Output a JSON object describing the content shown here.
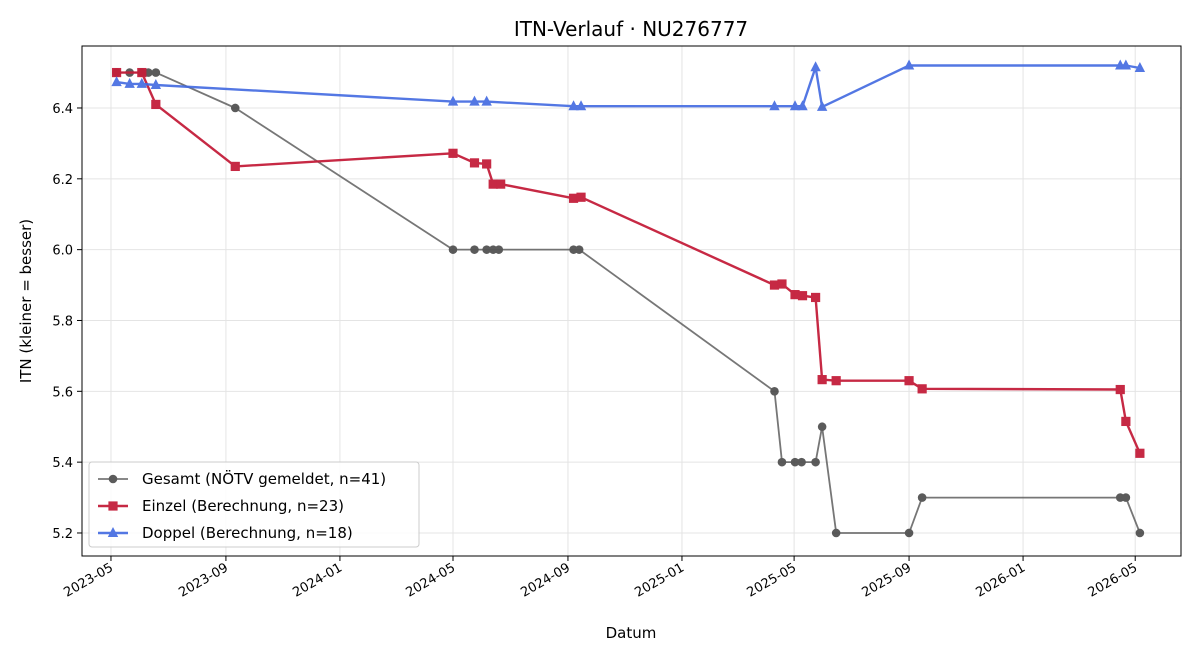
{
  "chart_data": {
    "type": "line",
    "title": "ITN-Verlauf · NU276777",
    "xlabel": "Datum",
    "ylabel": "ITN  (kleiner = besser)",
    "x_ticks": [
      "2023-05",
      "2023-09",
      "2024-01",
      "2024-05",
      "2024-09",
      "2025-01",
      "2025-05",
      "2025-09",
      "2026-01",
      "2026-05"
    ],
    "y_ticks": [
      "5.2",
      "5.4",
      "5.6",
      "5.8",
      "6.0",
      "6.2",
      "6.4"
    ],
    "xlim": [
      "2023-03-31",
      "2026-06-19"
    ],
    "ylim": [
      5.135,
      6.575
    ],
    "grid": true,
    "legend_position": "lower-left",
    "series": [
      {
        "name": "Gesamt (NÖTV gemeldet, n=41)",
        "color": "#555555",
        "marker": "circle",
        "points": [
          [
            "2023-05-07",
            6.5
          ],
          [
            "2023-05-21",
            6.5
          ],
          [
            "2023-06-03",
            6.5
          ],
          [
            "2023-06-10",
            6.5
          ],
          [
            "2023-06-18",
            6.5
          ],
          [
            "2023-09-11",
            6.4
          ],
          [
            "2024-05-01",
            6.0
          ],
          [
            "2024-05-24",
            6.0
          ],
          [
            "2024-06-06",
            6.0
          ],
          [
            "2024-06-13",
            6.0
          ],
          [
            "2024-06-19",
            6.0
          ],
          [
            "2024-09-07",
            6.0
          ],
          [
            "2024-09-13",
            6.0
          ],
          [
            "2025-04-10",
            5.6
          ],
          [
            "2025-04-18",
            5.4
          ],
          [
            "2025-05-02",
            5.4
          ],
          [
            "2025-05-09",
            5.4
          ],
          [
            "2025-05-24",
            5.4
          ],
          [
            "2025-05-31",
            5.5
          ],
          [
            "2025-06-15",
            5.2
          ],
          [
            "2025-09-01",
            5.2
          ],
          [
            "2025-09-15",
            5.3
          ],
          [
            "2026-04-15",
            5.3
          ],
          [
            "2026-04-21",
            5.3
          ],
          [
            "2026-05-06",
            5.2
          ]
        ]
      },
      {
        "name": "Einzel (Berechnung, n=23)",
        "color": "#C41E3A",
        "marker": "square",
        "points": [
          [
            "2023-05-07",
            6.5
          ],
          [
            "2023-06-03",
            6.5
          ],
          [
            "2023-06-18",
            6.41
          ],
          [
            "2023-09-11",
            6.235
          ],
          [
            "2024-05-01",
            6.272
          ],
          [
            "2024-05-24",
            6.245
          ],
          [
            "2024-06-06",
            6.242
          ],
          [
            "2024-06-13",
            6.185
          ],
          [
            "2024-06-21",
            6.185
          ],
          [
            "2024-09-07",
            6.145
          ],
          [
            "2024-09-15",
            6.148
          ],
          [
            "2025-04-10",
            5.9
          ],
          [
            "2025-04-18",
            5.903
          ],
          [
            "2025-05-02",
            5.873
          ],
          [
            "2025-05-10",
            5.87
          ],
          [
            "2025-05-24",
            5.865
          ],
          [
            "2025-05-31",
            5.633
          ],
          [
            "2025-06-15",
            5.63
          ],
          [
            "2025-09-01",
            5.63
          ],
          [
            "2025-09-15",
            5.607
          ],
          [
            "2026-04-15",
            5.605
          ],
          [
            "2026-04-21",
            5.515
          ],
          [
            "2026-05-06",
            5.425
          ]
        ]
      },
      {
        "name": "Doppel (Berechnung, n=18)",
        "color": "#4169E1",
        "marker": "triangle",
        "points": [
          [
            "2023-05-07",
            6.473
          ],
          [
            "2023-05-21",
            6.468
          ],
          [
            "2023-06-03",
            6.468
          ],
          [
            "2023-06-18",
            6.465
          ],
          [
            "2024-05-01",
            6.418
          ],
          [
            "2024-05-24",
            6.418
          ],
          [
            "2024-06-06",
            6.418
          ],
          [
            "2024-09-07",
            6.405
          ],
          [
            "2024-09-15",
            6.405
          ],
          [
            "2025-04-10",
            6.405
          ],
          [
            "2025-05-02",
            6.405
          ],
          [
            "2025-05-10",
            6.405
          ],
          [
            "2025-05-24",
            6.515
          ],
          [
            "2025-05-31",
            6.403
          ],
          [
            "2025-09-01",
            6.52
          ],
          [
            "2026-04-15",
            6.52
          ],
          [
            "2026-04-21",
            6.52
          ],
          [
            "2026-05-06",
            6.513
          ]
        ]
      }
    ]
  }
}
